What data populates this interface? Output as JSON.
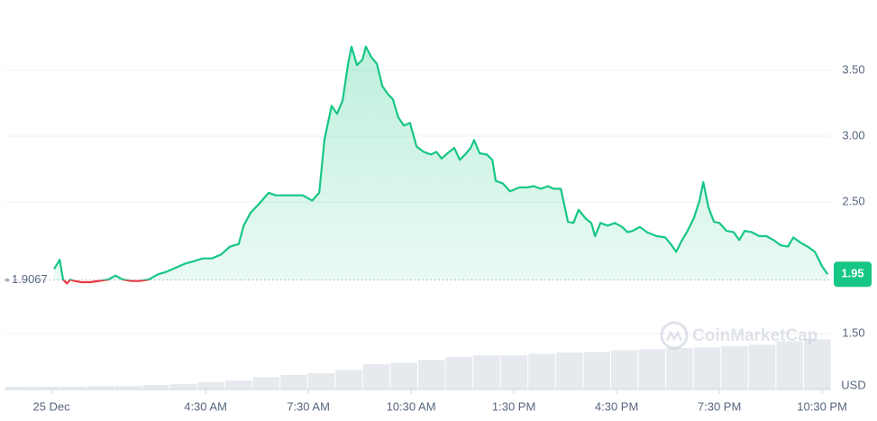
{
  "chart_data": {
    "type": "line",
    "watermark": "CoinMarketCap",
    "y_unit": "USD",
    "reference_price": 1.9067,
    "price_label": 1.95,
    "xlim": [
      -1.37,
      22.76
    ],
    "ylim": [
      1.075,
      4.0
    ],
    "xticks": [
      {
        "value": 0,
        "label": "25 Dec"
      },
      {
        "value": 4.5,
        "label": "4:30 AM"
      },
      {
        "value": 7.5,
        "label": "7:30 AM"
      },
      {
        "value": 10.5,
        "label": "10:30 AM"
      },
      {
        "value": 13.5,
        "label": "1:30 PM"
      },
      {
        "value": 16.5,
        "label": "4:30 PM"
      },
      {
        "value": 19.5,
        "label": "7:30 PM"
      },
      {
        "value": 22.5,
        "label": "10:30 PM"
      }
    ],
    "yticks": [
      {
        "value": 3.5,
        "label": "3.50"
      },
      {
        "value": 3,
        "label": "3.00"
      },
      {
        "value": 2.5,
        "label": "2.50"
      },
      {
        "value": 1.5,
        "label": "1.50"
      }
    ],
    "grid": true,
    "up_color": "#16c784",
    "down_color": "#ea3943",
    "series": [
      {
        "color": "#16c784",
        "x": [
          0.08,
          0.24,
          0.34,
          0.45,
          0.55,
          0.66,
          0.87,
          1.13,
          1.39,
          1.66,
          1.87,
          2.08,
          2.32,
          2.58,
          2.84,
          3.11,
          3.37,
          3.63,
          3.89,
          4.16,
          4.42,
          4.68,
          4.95,
          5.21,
          5.47,
          5.61,
          5.82,
          6.08,
          6.34,
          6.55,
          6.82,
          7.08,
          7.34,
          7.61,
          7.82,
          7.97,
          8.18,
          8.34,
          8.5,
          8.66,
          8.76,
          8.92,
          9.08,
          9.18,
          9.34,
          9.5,
          9.66,
          9.82,
          9.97,
          10.13,
          10.29,
          10.47,
          10.66,
          10.87,
          11.08,
          11.24,
          11.39,
          11.61,
          11.76,
          11.92,
          12.08,
          12.24,
          12.34,
          12.5,
          12.71,
          12.87,
          12.97,
          13.18,
          13.39,
          13.66,
          13.87,
          14.08,
          14.29,
          14.5,
          14.66,
          14.87,
          15.08,
          15.24,
          15.39,
          15.61,
          15.76,
          15.87,
          16.03,
          16.24,
          16.45,
          16.66,
          16.82,
          16.97,
          17.18,
          17.39,
          17.66,
          17.92,
          18.08,
          18.24,
          18.39,
          18.55,
          18.76,
          18.92,
          19.03,
          19.18,
          19.34,
          19.5,
          19.71,
          19.92,
          20.08,
          20.24,
          20.45,
          20.66,
          20.87,
          21.08,
          21.29,
          21.5,
          21.66,
          21.87,
          22.08,
          22.29,
          22.5,
          22.66
        ],
        "values": [
          1.99,
          2.06,
          1.91,
          1.88,
          1.91,
          1.9,
          1.89,
          1.89,
          1.9,
          1.91,
          1.94,
          1.91,
          1.9,
          1.9,
          1.91,
          1.95,
          1.97,
          2.0,
          2.03,
          2.05,
          2.07,
          2.07,
          2.1,
          2.16,
          2.18,
          2.32,
          2.42,
          2.49,
          2.57,
          2.55,
          2.55,
          2.55,
          2.55,
          2.51,
          2.57,
          2.97,
          3.23,
          3.17,
          3.27,
          3.55,
          3.68,
          3.54,
          3.58,
          3.68,
          3.6,
          3.55,
          3.38,
          3.32,
          3.28,
          3.14,
          3.08,
          3.1,
          2.92,
          2.88,
          2.86,
          2.88,
          2.83,
          2.88,
          2.91,
          2.82,
          2.86,
          2.91,
          2.97,
          2.87,
          2.86,
          2.82,
          2.66,
          2.64,
          2.58,
          2.61,
          2.61,
          2.62,
          2.6,
          2.62,
          2.6,
          2.6,
          2.35,
          2.34,
          2.44,
          2.37,
          2.34,
          2.24,
          2.34,
          2.32,
          2.34,
          2.31,
          2.27,
          2.28,
          2.31,
          2.27,
          2.24,
          2.23,
          2.18,
          2.12,
          2.2,
          2.27,
          2.38,
          2.51,
          2.65,
          2.46,
          2.35,
          2.34,
          2.28,
          2.27,
          2.21,
          2.28,
          2.27,
          2.24,
          2.24,
          2.21,
          2.17,
          2.16,
          2.23,
          2.19,
          2.16,
          2.12,
          2.01,
          1.95
        ]
      }
    ],
    "volume": {
      "color": "#e6e9ee",
      "ylim": [
        0,
        100
      ],
      "values": [
        5,
        5,
        5,
        6,
        6,
        8,
        10,
        13,
        16,
        22,
        26,
        29,
        35,
        45,
        48,
        53,
        58,
        61,
        61,
        64,
        66,
        67,
        70,
        72,
        74,
        75,
        77,
        80,
        86,
        90
      ]
    }
  }
}
